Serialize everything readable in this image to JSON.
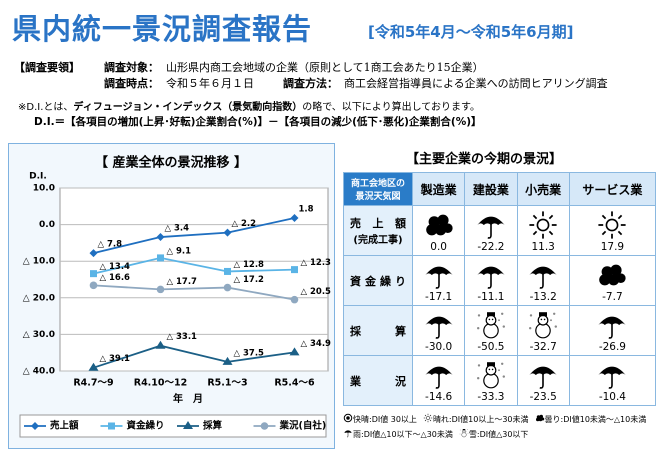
{
  "header": {
    "title": "県内統一景況調査報告",
    "subtitle": "[令和5年4月～令和5年6月期]"
  },
  "outline": {
    "label": "【調査要領】",
    "items": [
      {
        "key": "調査対象：",
        "text": "山形県内商工会地域の企業（原則として1商工会あたり15企業）"
      },
      {
        "key": "調査時点：",
        "text": "令和５年６月１日"
      },
      {
        "key": "調査方法：",
        "text": "商工会経営指導員による企業への訪問ヒアリング調査"
      }
    ]
  },
  "notes": {
    "definition": [
      "※D.I.とは、",
      "ディフュージョン・インデックス（景気動向指数）",
      "の略で、以下により算出しております。"
    ],
    "formula": "D.I.＝【各項目の増加(上昇･好転)企業割合(%)】－【各項目の減少(低下･悪化)企業割合(%)】"
  },
  "chart_data": {
    "type": "line",
    "title": "【 産業全体の景況推移 】",
    "y_label": "D.I.",
    "x_label": "年　月",
    "categories": [
      "R4.7～9",
      "R4.10～12",
      "R5.1～3",
      "R5.4～6"
    ],
    "ylim": [
      -40,
      10
    ],
    "yticks": [
      {
        "value": 10,
        "label": "10.0"
      },
      {
        "value": 0,
        "label": "0.0"
      },
      {
        "value": -10,
        "label": "△ 10.0"
      },
      {
        "value": -20,
        "label": "△ 20.0"
      },
      {
        "value": -30,
        "label": "△ 30.0"
      },
      {
        "value": -40,
        "label": "△ 40.0"
      }
    ],
    "grid": true,
    "legend": "bottom",
    "series": [
      {
        "name": "売上額",
        "color": "#1f6fc0",
        "marker": "diamond",
        "values": [
          -7.8,
          -3.4,
          -2.2,
          1.8
        ],
        "value_labels": [
          "△ 7.8",
          "△ 3.4",
          "△ 2.2",
          "1.8"
        ]
      },
      {
        "name": "資金繰り",
        "color": "#5ab4e6",
        "marker": "square",
        "values": [
          -13.4,
          -9.1,
          -12.8,
          -12.3
        ],
        "value_labels": [
          "△ 13.4",
          "△ 9.1",
          "△ 12.8",
          "△ 12.3"
        ]
      },
      {
        "name": "採算",
        "color": "#1b5f86",
        "marker": "triangle",
        "values": [
          -39.1,
          -33.1,
          -37.5,
          -34.9
        ],
        "value_labels": [
          "△ 39.1",
          "△ 33.1",
          "△ 37.5",
          "△ 34.9"
        ]
      },
      {
        "name": "業況(自社)",
        "color": "#8fa8c0",
        "marker": "circle",
        "values": [
          -16.6,
          -17.7,
          -17.2,
          -20.5
        ],
        "value_labels": [
          "△ 16.6",
          "△ 17.7",
          "△ 17.2",
          "△ 20.5"
        ]
      }
    ]
  },
  "table": {
    "title": "【主要企業の今期の景況】",
    "corner": [
      "商工会地区の",
      "景況天気図"
    ],
    "columns": [
      "製造業",
      "建設業",
      "小売業",
      "サービス業"
    ],
    "rows": [
      {
        "label": [
          "売上額",
          "(完成工事)"
        ],
        "values": [
          "0.0",
          "-22.2",
          "11.3",
          "17.9"
        ]
      },
      {
        "label": [
          "資金繰り"
        ],
        "values": [
          "-17.1",
          "-11.1",
          "-13.2",
          "-7.7"
        ]
      },
      {
        "label": [
          "採算"
        ],
        "values": [
          "-30.0",
          "-50.5",
          "-32.7",
          "-26.9"
        ]
      },
      {
        "label": [
          "業況"
        ],
        "values": [
          "-14.6",
          "-33.3",
          "-23.5",
          "-10.4"
        ]
      }
    ],
    "legend": [
      "快晴:DI値 30以上",
      "晴れ:DI値10以上～30未満",
      "曇り:DI値10未満～△10未満",
      "雨:DI値△10以下～△30未満",
      "雪:DI値△30以下"
    ]
  }
}
